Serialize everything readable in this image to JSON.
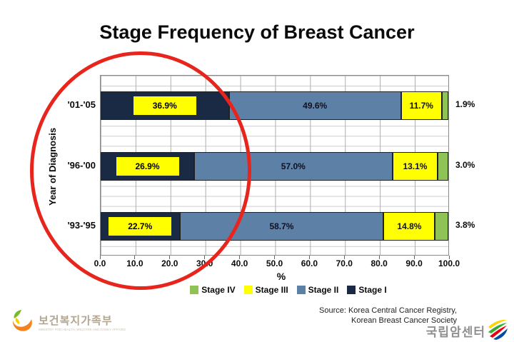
{
  "title": "Stage Frequency of Breast Cancer",
  "chart_data": {
    "type": "bar",
    "orientation": "horizontal",
    "stacked": true,
    "title": "Stage Frequency of Breast Cancer",
    "xlabel": "%",
    "ylabel": "Year of Diagnosis",
    "xlim": [
      0,
      100
    ],
    "grid": true,
    "categories": [
      "'01-'05",
      "'96-'00",
      "'93-'95"
    ],
    "series": [
      {
        "name": "Stage I",
        "color": "#1a2a45",
        "values": [
          36.9,
          26.9,
          22.7
        ],
        "label_style": "yellow-box"
      },
      {
        "name": "Stage II",
        "color": "#5d80a7",
        "values": [
          49.6,
          57.0,
          58.7
        ],
        "label_style": "plain"
      },
      {
        "name": "Stage III",
        "color": "#ffff00",
        "values": [
          11.7,
          13.1,
          14.8
        ],
        "label_style": "plain"
      },
      {
        "name": "Stage IV",
        "color": "#90c355",
        "values": [
          1.9,
          3.0,
          3.8
        ],
        "label_style": "outside"
      }
    ],
    "xticks": [
      "0.0",
      "10.0",
      "20.0",
      "30.0",
      "40.0",
      "50.0",
      "60.0",
      "70.0",
      "80.0",
      "90.0",
      "100.0"
    ],
    "legend_order": [
      {
        "label": "Stage IV",
        "color": "#90c355"
      },
      {
        "label": "Stage III",
        "color": "#ffff00"
      },
      {
        "label": "Stage II",
        "color": "#5d80a7"
      },
      {
        "label": "Stage I",
        "color": "#1a2a45"
      }
    ],
    "legend_position": "bottom-center"
  },
  "annotation": {
    "type": "ellipse",
    "color": "#e8251d",
    "highlights": "Stage I segments and year labels"
  },
  "source": {
    "line1": "Source: Korea Central Cancer Registry,",
    "line2": "Korean Breast Cancer Society"
  },
  "footer": {
    "left_logo_name": "보건복지가족부",
    "left_logo_caption": "MINISTRY FOR HEALTH, WELFARE AND FAMILY AFFAIRS",
    "right_logo_name": "국립암센터"
  }
}
